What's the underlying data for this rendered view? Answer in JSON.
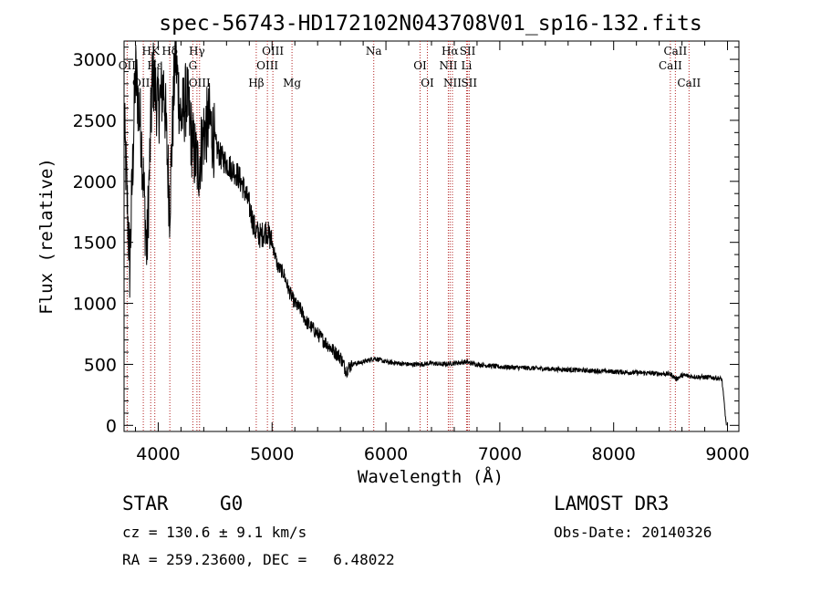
{
  "chart_data": {
    "type": "line",
    "title": "spec-56743-HD172102N043708V01_sp16-132.fits",
    "xlabel": "Wavelength (Å)",
    "ylabel": "Flux (relative)",
    "xlim": [
      3700,
      9100
    ],
    "ylim": [
      -50,
      3150
    ],
    "x_ticks": [
      4000,
      5000,
      6000,
      7000,
      8000,
      9000
    ],
    "y_ticks": [
      0,
      500,
      1000,
      1500,
      2000,
      2500,
      3000
    ],
    "line_color": "#000000",
    "marker_color": "#b22222",
    "spectrum_anchors": [
      [
        3700,
        2500
      ],
      [
        3750,
        1300
      ],
      [
        3800,
        2900
      ],
      [
        3850,
        2400
      ],
      [
        3900,
        1400
      ],
      [
        3950,
        2900
      ],
      [
        4000,
        2600
      ],
      [
        4050,
        2800
      ],
      [
        4100,
        1800
      ],
      [
        4150,
        3050
      ],
      [
        4200,
        2500
      ],
      [
        4250,
        2700
      ],
      [
        4300,
        2300
      ],
      [
        4350,
        2100
      ],
      [
        4400,
        2400
      ],
      [
        4450,
        2500
      ],
      [
        4500,
        2300
      ],
      [
        4550,
        2200
      ],
      [
        4600,
        2150
      ],
      [
        4650,
        2100
      ],
      [
        4700,
        2050
      ],
      [
        4750,
        1950
      ],
      [
        4800,
        1800
      ],
      [
        4850,
        1600
      ],
      [
        4900,
        1550
      ],
      [
        4950,
        1600
      ],
      [
        5000,
        1500
      ],
      [
        5050,
        1300
      ],
      [
        5100,
        1250
      ],
      [
        5150,
        1100
      ],
      [
        5200,
        1000
      ],
      [
        5250,
        950
      ],
      [
        5300,
        850
      ],
      [
        5350,
        800
      ],
      [
        5400,
        750
      ],
      [
        5450,
        700
      ],
      [
        5500,
        650
      ],
      [
        5550,
        600
      ],
      [
        5600,
        560
      ],
      [
        5650,
        450
      ],
      [
        5700,
        500
      ],
      [
        5800,
        520
      ],
      [
        5900,
        550
      ],
      [
        6000,
        520
      ],
      [
        6100,
        510
      ],
      [
        6200,
        500
      ],
      [
        6300,
        500
      ],
      [
        6400,
        510
      ],
      [
        6500,
        500
      ],
      [
        6600,
        510
      ],
      [
        6700,
        520
      ],
      [
        6800,
        500
      ],
      [
        7000,
        480
      ],
      [
        7500,
        460
      ],
      [
        8000,
        440
      ],
      [
        8500,
        420
      ],
      [
        8550,
        380
      ],
      [
        8600,
        410
      ],
      [
        8700,
        400
      ],
      [
        8900,
        390
      ],
      [
        8950,
        380
      ],
      [
        8990,
        0
      ]
    ],
    "lines": [
      {
        "label": "HK",
        "x": 3934
      },
      {
        "label": "OII",
        "x": 3727
      },
      {
        "label": "OIII",
        "x": 3869
      },
      {
        "label": "Hδ",
        "x": 4102
      },
      {
        "label": "Hε",
        "x": 3970
      },
      {
        "label": "OIII",
        "x": 4363
      },
      {
        "label": "Hγ",
        "x": 4340
      },
      {
        "label": "G",
        "x": 4304
      },
      {
        "label": "Hβ",
        "x": 4861
      },
      {
        "label": "OIII",
        "x": 5007
      },
      {
        "label": "OIII",
        "x": 4959
      },
      {
        "label": "Mg",
        "x": 5175
      },
      {
        "label": "Na",
        "x": 5893
      },
      {
        "label": "OI",
        "x": 6300
      },
      {
        "label": "OI",
        "x": 6364
      },
      {
        "label": "Hα",
        "x": 6563
      },
      {
        "label": "NII",
        "x": 6548
      },
      {
        "label": "NII",
        "x": 6584
      },
      {
        "label": "SII",
        "x": 6717
      },
      {
        "label": "Li",
        "x": 6708
      },
      {
        "label": "SII",
        "x": 6731
      },
      {
        "label": "CaII",
        "x": 8542
      },
      {
        "label": "CaII",
        "x": 8498
      },
      {
        "label": "CaII",
        "x": 8662
      }
    ]
  },
  "info": {
    "object_class": "STAR",
    "subclass": "G0",
    "survey": "LAMOST DR3",
    "cz": "cz = 130.6 ± 9.1 km/s",
    "obs_date": "Obs-Date: 20140326",
    "coords": "RA = 259.23600, DEC =   6.48022"
  }
}
